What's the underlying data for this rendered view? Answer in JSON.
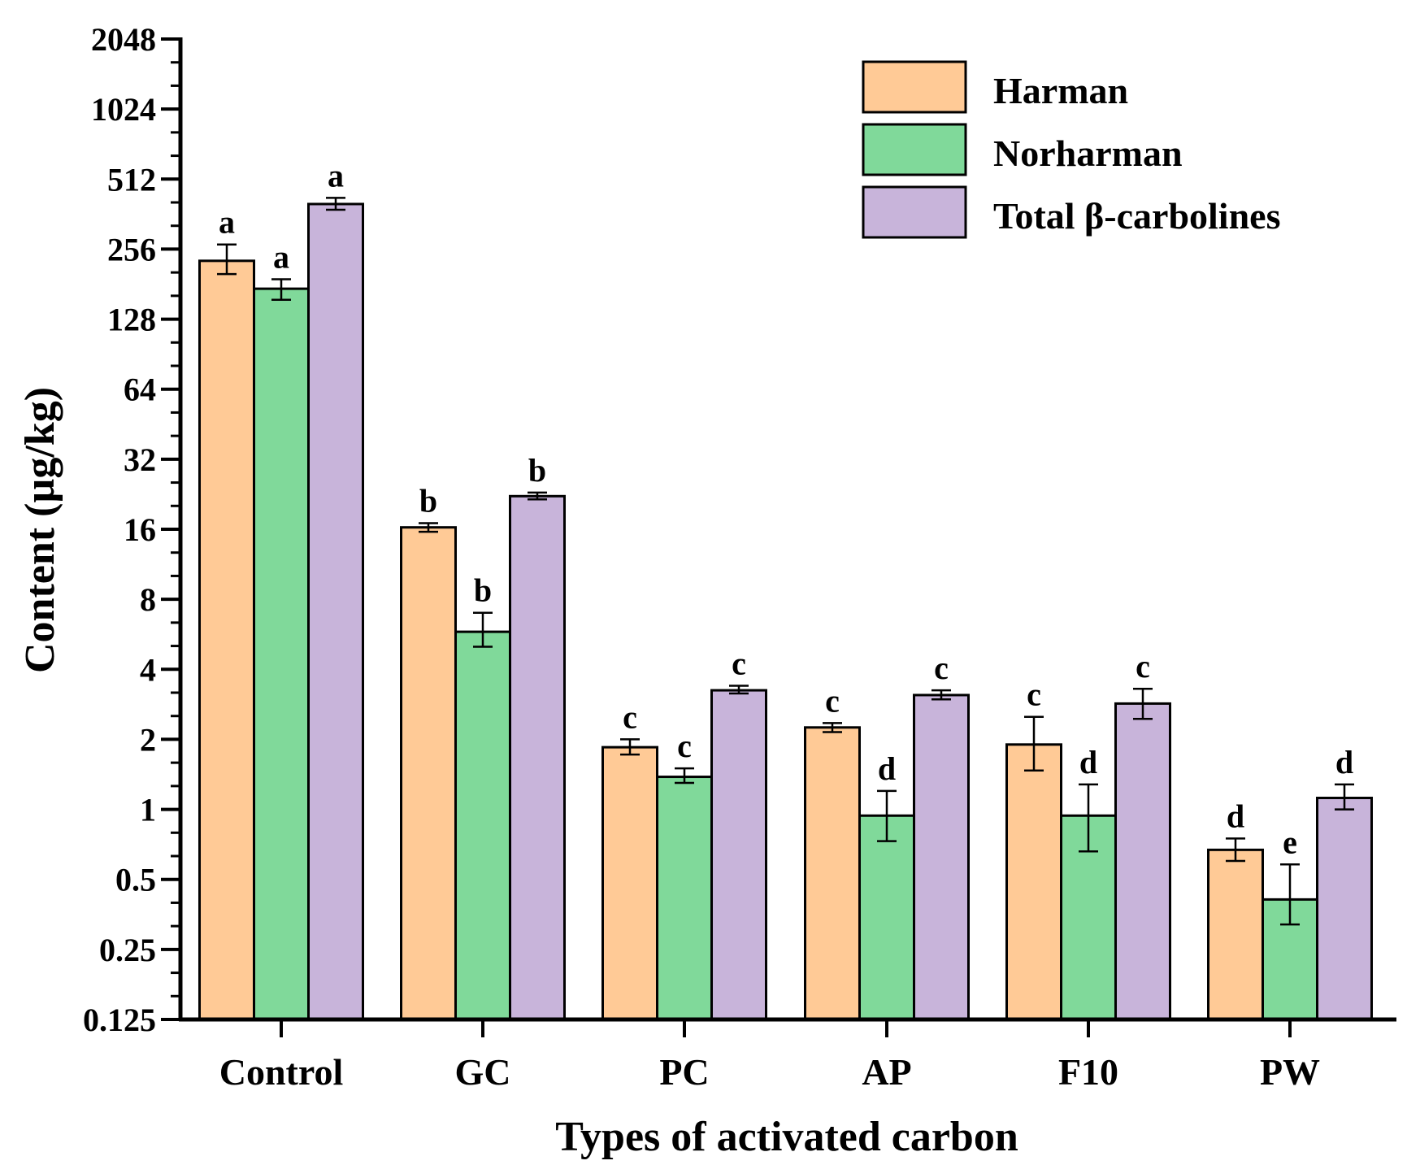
{
  "chart_data": {
    "type": "bar",
    "title": "",
    "xlabel": "Types of activated carbon",
    "ylabel": "Content (µg/kg)",
    "yscale": "log2",
    "ylim": [
      0.125,
      2048
    ],
    "yticks": [
      0.125,
      0.25,
      0.5,
      1,
      2,
      4,
      8,
      16,
      32,
      64,
      128,
      256,
      512,
      1024,
      2048
    ],
    "ytick_labels": [
      "0.125",
      "0.25",
      "0.5",
      "1",
      "2",
      "4",
      "8",
      "16",
      "32",
      "64",
      "128",
      "256",
      "512",
      "1024",
      "2048"
    ],
    "categories": [
      "Control",
      "GC",
      "PC",
      "AP",
      "F10",
      "PW"
    ],
    "legend_position": "top-right",
    "series": [
      {
        "name": "Harman",
        "color": "#FFCA96",
        "values": [
          228,
          16.3,
          1.85,
          2.25,
          1.9,
          0.67
        ],
        "error_low": [
          200,
          15.6,
          1.72,
          2.15,
          1.47,
          0.6
        ],
        "error_high": [
          268,
          17.0,
          2.0,
          2.35,
          2.5,
          0.75
        ],
        "significance": [
          "a",
          "b",
          "c",
          "c",
          "c",
          "d"
        ]
      },
      {
        "name": "Norharman",
        "color": "#80D99A",
        "values": [
          173,
          5.8,
          1.38,
          0.94,
          0.94,
          0.41
        ],
        "error_low": [
          155,
          5.0,
          1.3,
          0.73,
          0.66,
          0.32
        ],
        "error_high": [
          190,
          7.0,
          1.5,
          1.2,
          1.28,
          0.58
        ],
        "significance": [
          "a",
          "b",
          "c",
          "d",
          "d",
          "e"
        ]
      },
      {
        "name": "Total β-carbolines",
        "color": "#C8B4DA",
        "values": [
          400,
          22.2,
          3.25,
          3.1,
          2.85,
          1.12
        ],
        "error_low": [
          378,
          21.5,
          3.15,
          2.97,
          2.45,
          1.0
        ],
        "error_high": [
          425,
          23.0,
          3.4,
          3.25,
          3.3,
          1.28
        ],
        "significance": [
          "a",
          "b",
          "c",
          "c",
          "c",
          "d"
        ]
      }
    ]
  }
}
